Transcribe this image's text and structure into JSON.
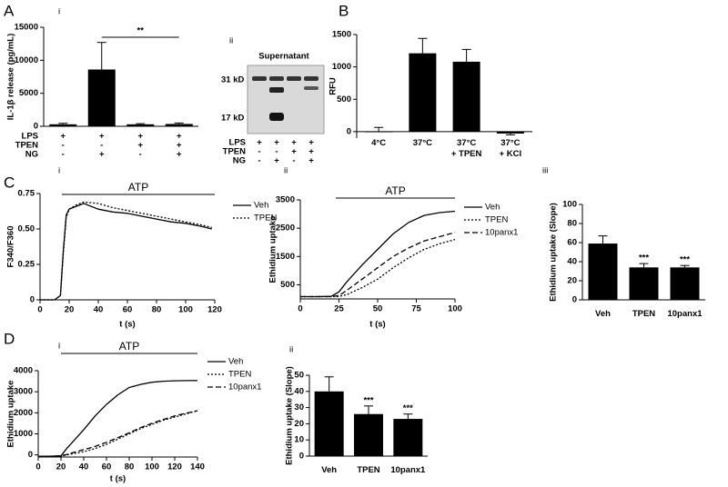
{
  "chart_data": [
    {
      "type": "bar",
      "panel": "A",
      "subpanel": "i",
      "y_label": "IL-1β release (pg/mL)",
      "condition_rows": [
        {
          "name": "LPS",
          "signs": [
            "+",
            "+",
            "+",
            "+"
          ]
        },
        {
          "name": "TPEN",
          "signs": [
            "-",
            "-",
            "+",
            "+"
          ]
        },
        {
          "name": "NG",
          "signs": [
            "-",
            "+",
            "-",
            "+"
          ]
        }
      ],
      "values": [
        300,
        8600,
        300,
        350
      ],
      "errors": [
        150,
        4100,
        100,
        150
      ],
      "color": "#000000",
      "ylim": [
        0,
        15000
      ],
      "yticks": [
        0,
        5000,
        10000,
        15000
      ],
      "bracket": {
        "text": "**",
        "from": 1,
        "to": 3
      }
    },
    {
      "type": "bar",
      "panel": "B",
      "y_label": "RFU",
      "categories": [
        "4°C",
        "37°C",
        "37°C\n+ TPEN",
        "37°C\n+ KCl"
      ],
      "values": [
        5,
        1210,
        1080,
        -30
      ],
      "errors": [
        60,
        230,
        190,
        20
      ],
      "color": "#000000",
      "ylim": [
        -100,
        1500
      ],
      "yticks": [
        0,
        500,
        1000,
        1500
      ]
    },
    {
      "type": "line",
      "panel": "C",
      "subpanel": "i",
      "y_label": "F340/F360",
      "x_label": "t (s)",
      "x": [
        0,
        10,
        14,
        16,
        18,
        20,
        25,
        30,
        40,
        50,
        60,
        70,
        80,
        90,
        100,
        110,
        118
      ],
      "series": [
        {
          "name": "Veh",
          "color": "#000000",
          "dash": "solid",
          "values": [
            0,
            0,
            0.03,
            0.35,
            0.6,
            0.64,
            0.66,
            0.68,
            0.64,
            0.62,
            0.61,
            0.59,
            0.57,
            0.55,
            0.54,
            0.52,
            0.5
          ]
        },
        {
          "name": "TPEN",
          "color": "#000000",
          "dash": "dotted",
          "values": [
            0,
            0,
            0.03,
            0.33,
            0.58,
            0.64,
            0.67,
            0.69,
            0.68,
            0.65,
            0.63,
            0.61,
            0.59,
            0.57,
            0.55,
            0.53,
            0.51
          ]
        }
      ],
      "xlim": [
        0,
        120
      ],
      "xticks": [
        0,
        20,
        40,
        60,
        80,
        100,
        120
      ],
      "ylim": [
        0,
        0.75
      ],
      "yticks": [
        0,
        0.25,
        {
          "value": 0.5,
          "label": "0.50"
        },
        0.75
      ],
      "stimulus": {
        "text": "ATP",
        "start": 15,
        "end": 120
      }
    },
    {
      "type": "line",
      "subpanel": "ii",
      "y_label": "Ethidium uptake",
      "x_label": "t (s)",
      "x": [
        0,
        10,
        20,
        25,
        30,
        40,
        50,
        60,
        70,
        80,
        90,
        100
      ],
      "series": [
        {
          "name": "Veh",
          "color": "#000000",
          "dash": "solid",
          "values": [
            80,
            80,
            90,
            250,
            600,
            1200,
            1750,
            2300,
            2700,
            2950,
            3050,
            3100
          ]
        },
        {
          "name": "TPEN",
          "color": "#000000",
          "dash": "dotted",
          "values": [
            80,
            80,
            80,
            90,
            150,
            400,
            700,
            1100,
            1450,
            1750,
            1950,
            2100
          ]
        },
        {
          "name": "10panx1",
          "color": "#000000",
          "dash": "dashed",
          "values": [
            80,
            80,
            80,
            120,
            300,
            700,
            1100,
            1500,
            1800,
            2050,
            2200,
            2350
          ]
        }
      ],
      "xlim": [
        0,
        100
      ],
      "xticks": [
        0,
        25,
        50,
        75,
        100
      ],
      "ylim": [
        0,
        3500
      ],
      "yticks": [
        500,
        1500,
        2500,
        3500
      ],
      "stimulus": {
        "text": "ATP",
        "start": 23,
        "end": 100
      }
    },
    {
      "type": "bar",
      "subpanel": "iii",
      "y_label": "Ethidium uptake (Slope)",
      "categories": [
        "Veh",
        "TPEN",
        "10panx1"
      ],
      "values": [
        59,
        34,
        34
      ],
      "errors": [
        8,
        4,
        2
      ],
      "significance": [
        null,
        "***",
        "***"
      ],
      "color": "#000000",
      "ylim": [
        0,
        100
      ],
      "yticks": [
        0,
        20,
        40,
        60,
        80,
        100
      ]
    },
    {
      "type": "line",
      "panel": "D",
      "subpanel": "i",
      "y_label": "Ethidium uptake",
      "x_label": "t (s)",
      "x": [
        0,
        10,
        20,
        25,
        30,
        40,
        50,
        60,
        70,
        80,
        90,
        100,
        110,
        120,
        130,
        140
      ],
      "series": [
        {
          "name": "Veh",
          "color": "#000000",
          "dash": "solid",
          "values": [
            -60,
            -60,
            -50,
            300,
            600,
            1200,
            1850,
            2400,
            2850,
            3200,
            3350,
            3450,
            3500,
            3520,
            3530,
            3530
          ]
        },
        {
          "name": "TPEN",
          "color": "#000000",
          "dash": "dotted",
          "values": [
            -60,
            -60,
            -50,
            0,
            50,
            150,
            300,
            500,
            750,
            1000,
            1250,
            1450,
            1650,
            1800,
            1950,
            2100
          ]
        },
        {
          "name": "10panx1",
          "color": "#000000",
          "dash": "dashed",
          "values": [
            -60,
            -60,
            -50,
            20,
            100,
            250,
            400,
            600,
            820,
            1050,
            1300,
            1500,
            1680,
            1850,
            1980,
            2100
          ]
        }
      ],
      "xlim": [
        0,
        140
      ],
      "xticks": [
        0,
        20,
        40,
        60,
        80,
        100,
        120,
        140
      ],
      "ylim": [
        -100,
        4000
      ],
      "yticks": [
        0,
        1000,
        2000,
        3000,
        4000
      ],
      "stimulus": {
        "text": "ATP",
        "start": 20,
        "end": 140
      }
    },
    {
      "type": "bar",
      "subpanel": "ii",
      "y_label": "Ethidium uptake (Slope)",
      "categories": [
        "Veh",
        "TPEN",
        "10panx1"
      ],
      "values": [
        40,
        26,
        23
      ],
      "errors": [
        9,
        5,
        3
      ],
      "significance": [
        null,
        "***",
        "***"
      ],
      "color": "#000000",
      "ylim": [
        0,
        50
      ],
      "yticks": [
        0,
        10,
        20,
        30,
        40,
        50
      ]
    }
  ],
  "blot": {
    "label": "ii",
    "title": "Supernatant",
    "markers": [
      "31 kD",
      "17 kD"
    ],
    "rows": [
      {
        "name": "LPS",
        "signs": [
          "+",
          "+",
          "+",
          "+"
        ]
      },
      {
        "name": "TPEN",
        "signs": [
          "-",
          "-",
          "+",
          "+"
        ]
      },
      {
        "name": "NG",
        "signs": [
          "-",
          "+",
          "-",
          "+"
        ]
      }
    ]
  }
}
